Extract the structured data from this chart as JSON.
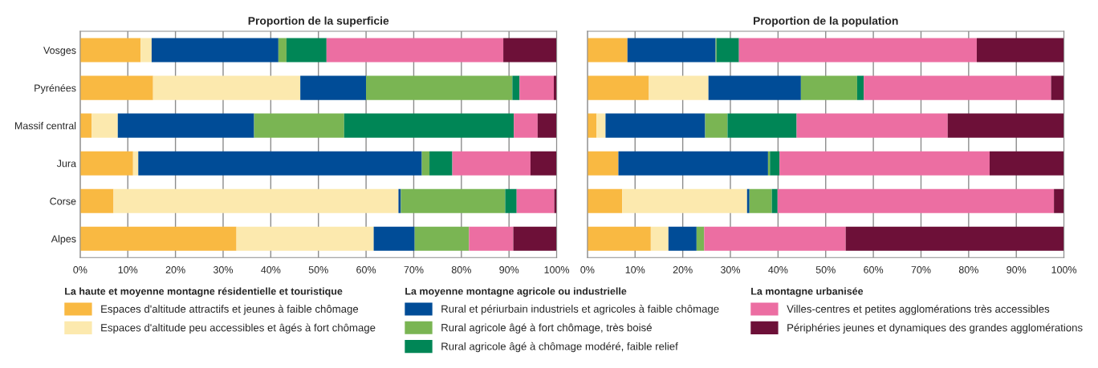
{
  "chart_data": [
    {
      "type": "bar",
      "orientation": "horizontal",
      "stacked": true,
      "title": "Proportion de la superficie",
      "categories": [
        "Vosges",
        "Pyrénées",
        "Massif central",
        "Jura",
        "Corse",
        "Alpes"
      ],
      "xlim": [
        0,
        100
      ],
      "xticks": [
        {
          "value": 0,
          "label": "0%"
        },
        {
          "value": 10,
          "label": "10%"
        },
        {
          "value": 20,
          "label": "20%"
        },
        {
          "value": 30,
          "label": "30%"
        },
        {
          "value": 40,
          "label": "40%"
        },
        {
          "value": 50,
          "label": "50%"
        },
        {
          "value": 60,
          "label": "60%"
        },
        {
          "value": 70,
          "label": "70%"
        },
        {
          "value": 80,
          "label": "80%"
        },
        {
          "value": 90,
          "label": "90%"
        },
        {
          "value": 100,
          "label": "100%"
        }
      ],
      "grid": "x",
      "legend": "bottom",
      "annotations": [
        "La haute et moyenne montagne résidentielle et touristique",
        "La moyenne montagne agricole ou industrielle",
        "La montagne urbanisée"
      ],
      "series": [
        {
          "name": "Espaces d'altitude attractifs et jeunes à faible chômage",
          "color": "#f9b942",
          "values": [
            12.7,
            15.3,
            2.4,
            11.1,
            7.0,
            32.8
          ]
        },
        {
          "name": "Espaces d'altitude peu accessibles et âgés à fort chômage",
          "color": "#fce9ae",
          "values": [
            2.3,
            30.9,
            5.5,
            1.1,
            59.8,
            28.8
          ]
        },
        {
          "name": "Rural et périurbain industriels et agricoles à faible chômage",
          "color": "#004c97",
          "values": [
            26.6,
            13.8,
            28.6,
            59.5,
            0.5,
            8.6
          ]
        },
        {
          "name": "Rural agricole âgé à fort chômage, très boisé",
          "color": "#7ab553",
          "values": [
            1.7,
            30.7,
            18.9,
            1.6,
            21.9,
            11.4
          ]
        },
        {
          "name": "Rural agricole âgé à chômage modéré, faible relief",
          "color": "#008656",
          "values": [
            8.4,
            1.5,
            35.6,
            4.8,
            2.4,
            0
          ]
        },
        {
          "name": "Villes-centres et petites agglomérations très accessibles",
          "color": "#ec6ea2",
          "values": [
            37.1,
            7.2,
            5.0,
            16.4,
            7.9,
            9.3
          ]
        },
        {
          "name": "Périphéries jeunes et dynamiques des grandes agglomérations",
          "color": "#6d1038",
          "values": [
            11.2,
            0.6,
            4.0,
            5.5,
            0.5,
            9.1
          ]
        }
      ]
    },
    {
      "type": "bar",
      "orientation": "horizontal",
      "stacked": true,
      "title": "Proportion de la population",
      "categories": [
        null,
        null,
        null,
        null,
        null,
        null
      ],
      "xlim": [
        0,
        100
      ],
      "xticks": [
        {
          "value": 0,
          "label": "0%"
        },
        {
          "value": 10,
          "label": "10%"
        },
        {
          "value": 20,
          "label": "20%"
        },
        {
          "value": 30,
          "label": "30%"
        },
        {
          "value": 40,
          "label": "40%"
        },
        {
          "value": 50,
          "label": "50%"
        },
        {
          "value": 60,
          "label": "60%"
        },
        {
          "value": 70,
          "label": "70%"
        },
        {
          "value": 80,
          "label": "80%"
        },
        {
          "value": 90,
          "label": "90%"
        },
        {
          "value": 100,
          "label": "100%"
        }
      ],
      "grid": "x",
      "tick_labels": "x",
      "series": [
        {
          "color": "#f9b942",
          "values": [
            8.4,
            12.9,
            1.9,
            6.5,
            7.3,
            13.3
          ]
        },
        {
          "color": "#fce9ae",
          "values": [
            null,
            12.5,
            1.9,
            0,
            26.2,
            3.7
          ]
        },
        {
          "color": "#004c97",
          "values": [
            18.5,
            19.4,
            20.9,
            31.4,
            0.5,
            5.9
          ]
        },
        {
          "color": "#7ab553",
          "values": [
            0.2,
            11.8,
            4.7,
            0.4,
            4.7,
            1.6
          ]
        },
        {
          "color": "#008656",
          "values": [
            4.7,
            1.4,
            14.5,
            2.0,
            1.2,
            0
          ]
        },
        {
          "color": "#ec6ea2",
          "values": [
            49.9,
            39.3,
            31.7,
            44.1,
            58.0,
            29.7
          ]
        },
        {
          "color": "#6d1038",
          "values": [
            18.3,
            2.7,
            24.4,
            15.6,
            2.1,
            45.8
          ]
        }
      ]
    }
  ]
}
